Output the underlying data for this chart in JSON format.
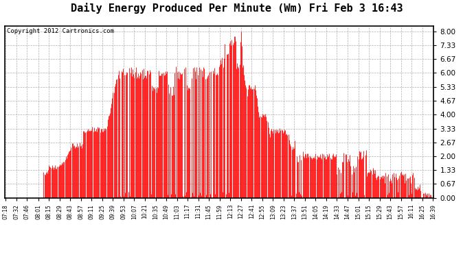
{
  "title": "Daily Energy Produced Per Minute (Wm) Fri Feb 3 16:43",
  "copyright": "Copyright 2012 Cartronics.com",
  "y_ticks": [
    0.0,
    0.67,
    1.33,
    2.0,
    2.67,
    3.33,
    4.0,
    4.67,
    5.33,
    6.0,
    6.67,
    7.33,
    8.0
  ],
  "ylim": [
    0,
    8.27
  ],
  "line_color": "#ff0000",
  "bg_color": "#ffffff",
  "grid_color": "#999999",
  "title_fontsize": 11,
  "copyright_fontsize": 6.5,
  "x_labels": [
    "07:18",
    "07:32",
    "07:46",
    "08:01",
    "08:15",
    "08:29",
    "08:43",
    "08:57",
    "09:11",
    "09:25",
    "09:39",
    "09:53",
    "10:07",
    "10:21",
    "10:35",
    "10:49",
    "11:03",
    "11:17",
    "11:31",
    "11:45",
    "11:59",
    "12:13",
    "12:27",
    "12:41",
    "12:55",
    "13:09",
    "13:23",
    "13:37",
    "13:51",
    "14:05",
    "14:19",
    "14:33",
    "14:47",
    "15:01",
    "15:15",
    "15:29",
    "15:43",
    "15:57",
    "16:11",
    "16:25",
    "16:39"
  ]
}
